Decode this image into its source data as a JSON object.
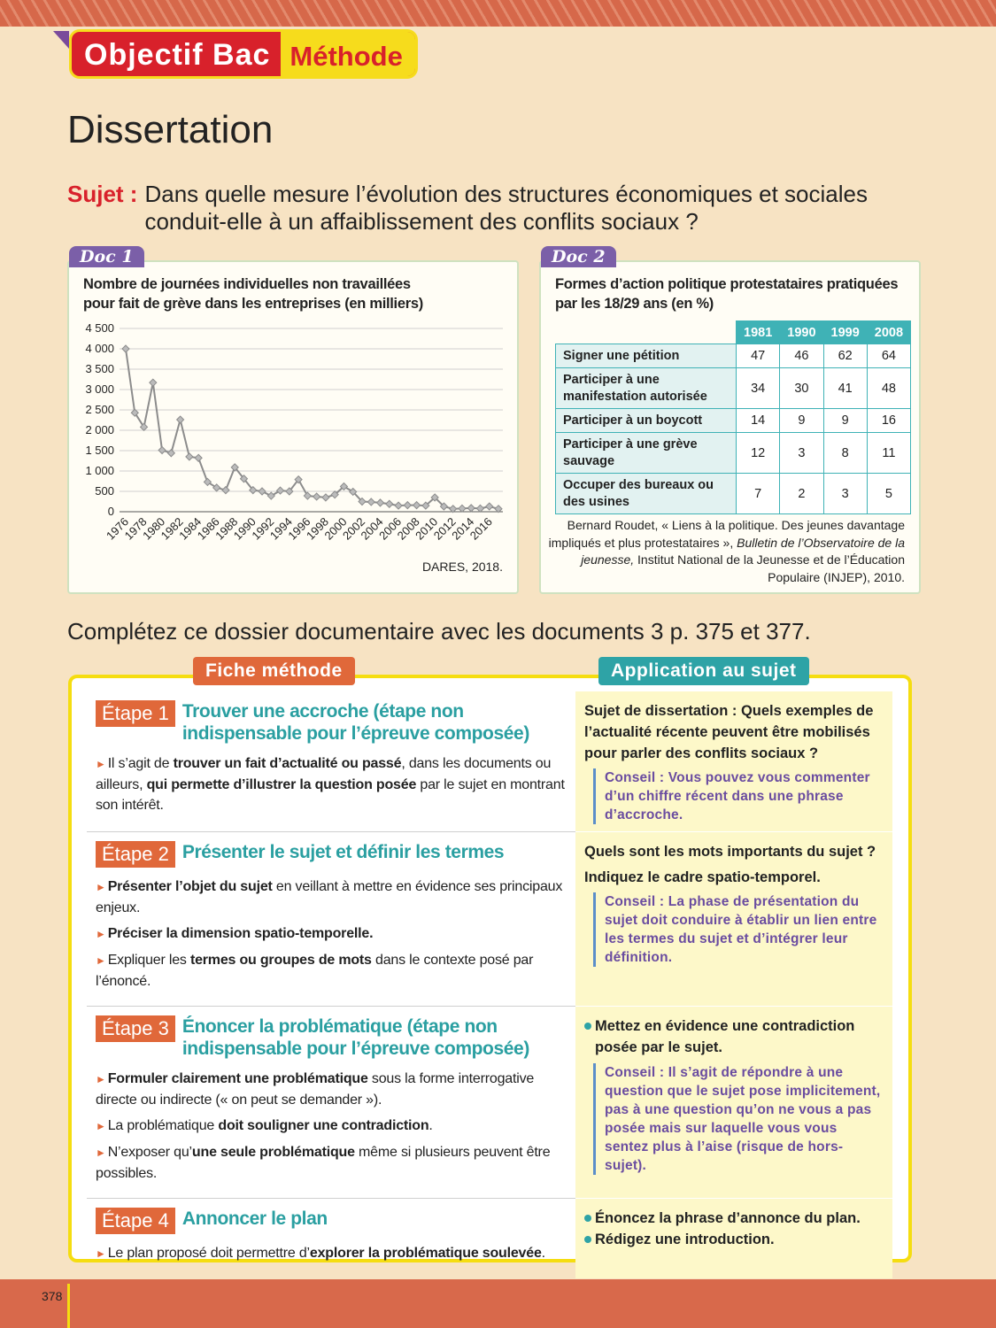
{
  "header": {
    "badge": "Objectif Bac",
    "tag": "Méthode"
  },
  "title": "Dissertation",
  "sujet": {
    "label": "Sujet :",
    "text": "Dans quelle mesure l’évolution des structures économiques et sociales conduit-elle à un affaiblissement des conflits sociaux ?"
  },
  "chart_data": {
    "type": "line",
    "doc_label": "Doc 1",
    "title": "Nombre de journées individuelles non travaillées pour fait de grève dans les entreprises (en milliers)",
    "categories": [
      "1976",
      null,
      "1978",
      null,
      "1980",
      null,
      "1982",
      null,
      "1984",
      null,
      "1986",
      null,
      "1988",
      null,
      "1990",
      null,
      "1992",
      null,
      "1994",
      null,
      "1996",
      null,
      "1998",
      null,
      "2000",
      null,
      "2002",
      null,
      "2004",
      null,
      "2006",
      null,
      "2008",
      null,
      "2010",
      null,
      "2012",
      null,
      "2014",
      null,
      "2016",
      null
    ],
    "series": [
      {
        "color": "#8c8c8c",
        "values": [
          4000,
          2430,
          2080,
          3170,
          1510,
          1440,
          2260,
          1350,
          1320,
          730,
          590,
          530,
          1090,
          810,
          530,
          500,
          390,
          520,
          500,
          790,
          390,
          370,
          350,
          420,
          620,
          490,
          250,
          240,
          220,
          190,
          150,
          160,
          160,
          150,
          350,
          130,
          70,
          80,
          90,
          80,
          130,
          70
        ]
      }
    ],
    "ylim": [
      0,
      4500
    ],
    "yticks": [
      0,
      500,
      {
        "value": 1000,
        "label": "1 000"
      },
      {
        "value": 1500,
        "label": "1 500"
      },
      {
        "value": 2000,
        "label": "2 000"
      },
      {
        "value": 2500,
        "label": "2 500"
      },
      {
        "value": 3000,
        "label": "3 000"
      },
      {
        "value": 3500,
        "label": "3 500"
      },
      {
        "value": 4000,
        "label": "4 000"
      },
      {
        "value": 4500,
        "label": "4 500"
      }
    ],
    "grid": true,
    "source": "DARES, 2018."
  },
  "doc2": {
    "label": "Doc 2",
    "title": "Formes d’action politique protestataires pratiquées par les 18/29 ans (en %)",
    "table": {
      "header": [
        "1981",
        "1990",
        "1999",
        "2008"
      ],
      "rows": [
        [
          "Signer une pétition",
          47,
          46,
          62,
          64
        ],
        [
          "Participer à une manifestation autorisée",
          34,
          30,
          41,
          48
        ],
        [
          "Participer à un boycott",
          14,
          9,
          9,
          16
        ],
        [
          "Participer à une grève sauvage",
          12,
          3,
          8,
          11
        ],
        [
          "Occuper des bureaux ou des usines",
          7,
          2,
          3,
          5
        ]
      ]
    },
    "source": [
      "Bernard Roudet, « Liens à la politique. Des jeunes davantage impliqués et plus protestataires »,",
      "Bulletin de l’Observatoire de la jeunesse,",
      "Institut National de la Jeunesse et de l’Éducation Populaire (INJEP), 2010."
    ]
  },
  "instruction": "Complétez ce dossier documentaire avec les documents 3 p. 375 et 377.",
  "fiche": {
    "tab": "Fiche méthode",
    "app_tab": "Application au sujet",
    "steps": [
      {
        "label": "Étape 1",
        "title": "Trouver une accroche (étape non indispensable pour l’épreuve composée)",
        "items": [
          [
            "Il s’agit de ",
            "trouver un fait d’actualité ou passé",
            ", dans les documents ou ailleurs, ",
            "qui permette d’illustrer la question posée",
            " par le sujet en montrant son intérêt."
          ]
        ],
        "application": {
          "questions": [
            "Sujet de dissertation : Quels exemples de l’actualité récente peuvent être mobilisés pour parler des conflits sociaux ?"
          ],
          "conseil": "Conseil : Vous pouvez vous commenter d’un chiffre récent dans une phrase d’accroche."
        }
      },
      {
        "label": "Étape 2",
        "title": "Présenter le sujet et définir les termes",
        "items": [
          [
            "Présenter l’objet du sujet",
            " en veillant à mettre en évidence ses principaux enjeux."
          ],
          [
            "Préciser la dimension spatio-temporelle."
          ],
          [
            "Expliquer les ",
            "termes ou groupes de mots",
            " dans le contexte posé par l’énoncé."
          ]
        ],
        "application": {
          "questions": [
            "Quels sont les mots importants du sujet ?",
            "Indiquez le cadre spatio-temporel."
          ],
          "conseil": "Conseil : La phase de présentation du sujet doit conduire à établir un lien entre les termes du sujet et d’intégrer leur définition."
        }
      },
      {
        "label": "Étape 3",
        "title": "Énoncer la problématique (étape non indispensable pour l’épreuve composée)",
        "items": [
          [
            "Formuler clairement une problématique",
            " sous la forme interrogative directe ou indirecte (« on peut se demander »)."
          ],
          [
            "La problématique ",
            "doit souligner une contradiction",
            "."
          ],
          [
            "N’exposer qu’",
            "une seule problématique",
            " même si plusieurs peuvent être possibles."
          ]
        ],
        "application": {
          "bullets": [
            "Mettez en évidence une contradiction posée par le sujet."
          ],
          "conseil": "Conseil : Il s’agit de répondre à une question que le sujet pose implicitement, pas à une question qu’on ne vous a pas posée mais sur laquelle vous vous sentez plus à l’aise (risque de hors-sujet)."
        }
      },
      {
        "label": "Étape 4",
        "title": "Annoncer le plan",
        "items": [
          [
            "Le plan proposé doit permettre d’",
            "explorer la problématique soulevée",
            "."
          ]
        ],
        "application": {
          "bullets": [
            "Énoncez la phrase d’annonce du plan.",
            "Rédigez une introduction."
          ]
        }
      }
    ]
  },
  "footer": {
    "page": "378"
  }
}
